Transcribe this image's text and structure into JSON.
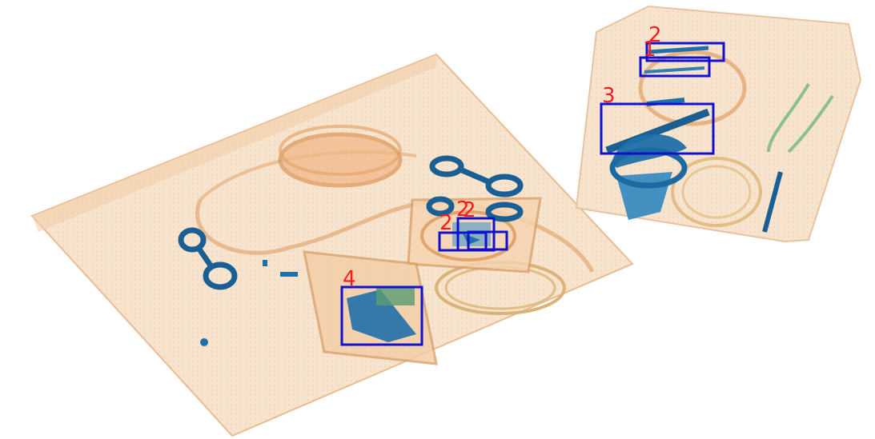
{
  "image": {
    "kind": "x-ray-baggage-scan"
  },
  "colors": {
    "bag_fill": "#f7dcc0",
    "bag_edge": "#e8b98c",
    "organic": "#e6a066",
    "metal": "#1f6fa8",
    "metal_dark": "#124f80",
    "detection_box": "#1010d0",
    "detection_label": "#ff1a1a"
  },
  "detections": [
    {
      "id": "det-1",
      "label": "2"
    },
    {
      "id": "det-2",
      "label": "2"
    },
    {
      "id": "det-3",
      "label": "2"
    },
    {
      "id": "det-4",
      "label": "4"
    },
    {
      "id": "det-5",
      "label": "2"
    },
    {
      "id": "det-6",
      "label": "1"
    },
    {
      "id": "det-7",
      "label": "3"
    }
  ]
}
